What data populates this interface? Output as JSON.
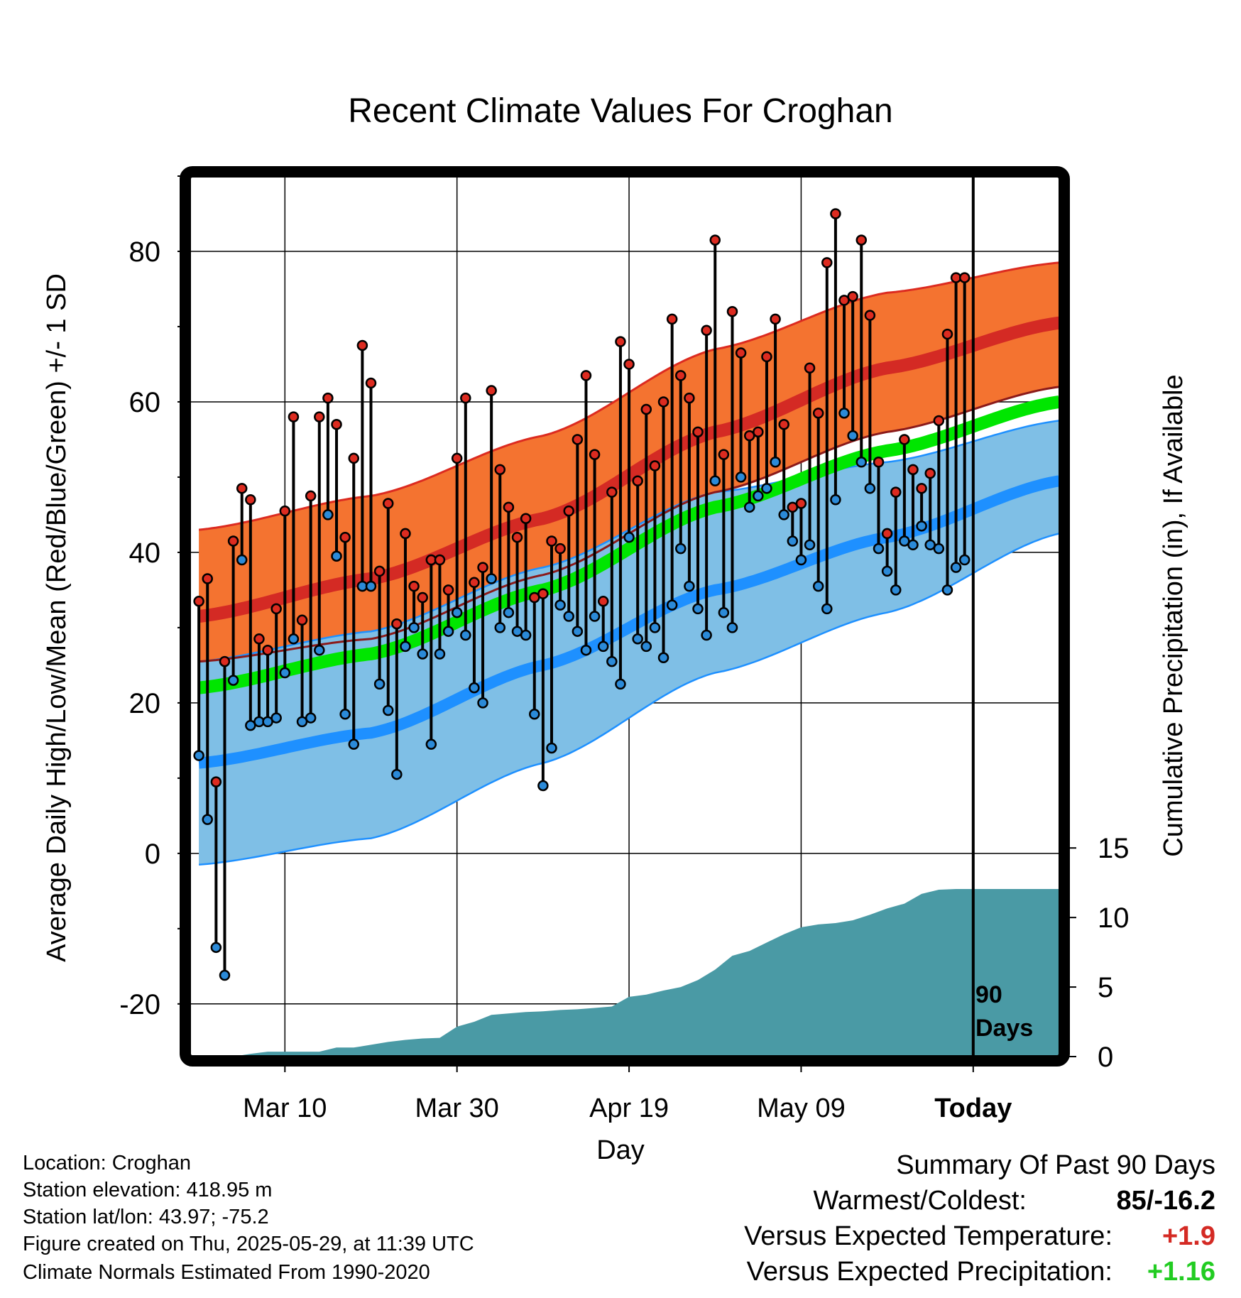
{
  "chart_data": {
    "type": "line",
    "title": "Recent Climate Values For Croghan",
    "xlabel": "Day",
    "ylabel": "Average Daily High/Low/Mean (Red/Blue/Green) +/- 1 SD",
    "y2label": "Cumulative Precipitation (in), If Available",
    "x_tick_labels": [
      "Mar 10",
      "Mar 30",
      "Apr 19",
      "May 09",
      "Today"
    ],
    "x_tick_days": [
      11,
      31,
      51,
      71,
      91
    ],
    "xlim": [
      0,
      101
    ],
    "ylim": [
      -27,
      90
    ],
    "y_ticks": [
      -20,
      0,
      20,
      40,
      60,
      80
    ],
    "y2_ticks": [
      0,
      5,
      10,
      15
    ],
    "y2_per_inch_degF": 2.47,
    "today_marker": {
      "day": 91,
      "label_line1": "90",
      "label_line2": "Days"
    },
    "normals": {
      "high_mean": [
        [
          1,
          31.5
        ],
        [
          21,
          36.5
        ],
        [
          41,
          44.5
        ],
        [
          61,
          56
        ],
        [
          81,
          64.5
        ],
        [
          101,
          70.5
        ]
      ],
      "high_sd_upper": [
        [
          1,
          43
        ],
        [
          21,
          47.5
        ],
        [
          41,
          55.5
        ],
        [
          61,
          67
        ],
        [
          81,
          74.5
        ],
        [
          101,
          78.5
        ]
      ],
      "high_sd_lower": [
        [
          1,
          25.5
        ],
        [
          21,
          28.5
        ],
        [
          41,
          37
        ],
        [
          61,
          48
        ],
        [
          81,
          56
        ],
        [
          101,
          62
        ]
      ],
      "low_mean": [
        [
          1,
          12
        ],
        [
          21,
          16
        ],
        [
          41,
          25
        ],
        [
          61,
          35
        ],
        [
          81,
          42
        ],
        [
          101,
          49.5
        ]
      ],
      "low_sd_upper": [
        [
          1,
          25.5
        ],
        [
          21,
          29.5
        ],
        [
          41,
          38
        ],
        [
          61,
          48
        ],
        [
          81,
          52
        ],
        [
          101,
          57.5
        ]
      ],
      "low_sd_lower": [
        [
          1,
          -1.5
        ],
        [
          21,
          2
        ],
        [
          41,
          12
        ],
        [
          61,
          24
        ],
        [
          81,
          32
        ],
        [
          101,
          42.5
        ]
      ],
      "mean": [
        [
          1,
          22
        ],
        [
          21,
          26.5
        ],
        [
          41,
          35
        ],
        [
          61,
          46
        ],
        [
          81,
          53.5
        ],
        [
          101,
          60
        ]
      ]
    },
    "series": [
      {
        "name": "High",
        "x": [
          1,
          2,
          3,
          4,
          5,
          6,
          7,
          8,
          9,
          10,
          11,
          12,
          13,
          14,
          15,
          16,
          17,
          18,
          19,
          20,
          21,
          22,
          23,
          24,
          25,
          26,
          27,
          28,
          29,
          30,
          31,
          32,
          33,
          34,
          35,
          36,
          37,
          38,
          39,
          40,
          41,
          42,
          43,
          44,
          45,
          46,
          47,
          48,
          49,
          50,
          51,
          52,
          53,
          54,
          55,
          56,
          57,
          58,
          59,
          60,
          61,
          62,
          63,
          64,
          65,
          66,
          67,
          68,
          69,
          70,
          71,
          72,
          73,
          74,
          75,
          76,
          77,
          78,
          79,
          80,
          81,
          82,
          83,
          84,
          85,
          86,
          87,
          88,
          89,
          90,
          91
        ],
        "values": [
          33.5,
          36.5,
          9.5,
          25.5,
          41.5,
          48.5,
          47,
          28.5,
          27,
          32.5,
          45.5,
          58,
          31,
          47.5,
          58,
          60.5,
          57,
          42,
          52.5,
          67.5,
          62.5,
          37.5,
          46.5,
          30.5,
          42.5,
          35.5,
          34,
          39,
          39,
          35,
          52.5,
          60.5,
          36,
          38,
          61.5,
          51,
          46,
          42,
          44.5,
          34,
          34.5,
          41.5,
          40.5,
          45.5,
          55,
          63.5,
          53,
          33.5,
          48,
          68,
          65,
          49.5,
          59,
          51.5,
          60,
          71,
          63.5,
          60.5,
          56,
          69.5,
          81.5,
          53,
          72,
          66.5,
          55.5,
          56,
          66,
          71,
          57,
          46,
          46.5,
          64.5,
          58.5,
          78.5,
          85,
          73.5,
          74,
          81.5,
          71.5,
          52,
          42.5,
          48,
          55,
          51,
          48.5,
          50.5,
          57.5,
          69,
          76.5,
          76.5,
          null
        ]
      },
      {
        "name": "Low",
        "x": [
          1,
          2,
          3,
          4,
          5,
          6,
          7,
          8,
          9,
          10,
          11,
          12,
          13,
          14,
          15,
          16,
          17,
          18,
          19,
          20,
          21,
          22,
          23,
          24,
          25,
          26,
          27,
          28,
          29,
          30,
          31,
          32,
          33,
          34,
          35,
          36,
          37,
          38,
          39,
          40,
          41,
          42,
          43,
          44,
          45,
          46,
          47,
          48,
          49,
          50,
          51,
          52,
          53,
          54,
          55,
          56,
          57,
          58,
          59,
          60,
          61,
          62,
          63,
          64,
          65,
          66,
          67,
          68,
          69,
          70,
          71,
          72,
          73,
          74,
          75,
          76,
          77,
          78,
          79,
          80,
          81,
          82,
          83,
          84,
          85,
          86,
          87,
          88,
          89,
          90,
          91
        ],
        "values": [
          13,
          4.5,
          -12.5,
          -16.2,
          23,
          39,
          17,
          17.5,
          17.5,
          18,
          24,
          28.5,
          17.5,
          18,
          27,
          45,
          39.5,
          18.5,
          14.5,
          35.5,
          35.5,
          22.5,
          19,
          10.5,
          27.5,
          30,
          26.5,
          14.5,
          26.5,
          29.5,
          32,
          29,
          22,
          20,
          36.5,
          30,
          32,
          29.5,
          29,
          18.5,
          9,
          14,
          33,
          31.5,
          29.5,
          27,
          31.5,
          27.5,
          25.5,
          22.5,
          42,
          28.5,
          27.5,
          30,
          26,
          33,
          40.5,
          35.5,
          32.5,
          29,
          49.5,
          32,
          30,
          50,
          46,
          47.5,
          48.5,
          52,
          45,
          41.5,
          39,
          41,
          35.5,
          32.5,
          47,
          58.5,
          55.5,
          52,
          48.5,
          40.5,
          37.5,
          35,
          41.5,
          41,
          43.5,
          41,
          40.5,
          35,
          38,
          39,
          null
        ]
      }
    ],
    "precip_cumulative": {
      "x": [
        1,
        5,
        7,
        9,
        11,
        13,
        15,
        17,
        19,
        21,
        23,
        25,
        27,
        29,
        31,
        33,
        35,
        37,
        39,
        41,
        43,
        45,
        47,
        49,
        51,
        53,
        55,
        57,
        59,
        61,
        63,
        65,
        67,
        69,
        71,
        73,
        75,
        77,
        79,
        81,
        83,
        85,
        87,
        89,
        91,
        101
      ],
      "values": [
        0,
        0,
        0.2,
        0.35,
        0.35,
        0.35,
        0.35,
        0.65,
        0.65,
        0.85,
        1.05,
        1.2,
        1.3,
        1.35,
        2.15,
        2.5,
        3.0,
        3.1,
        3.2,
        3.25,
        3.35,
        3.4,
        3.5,
        3.6,
        4.3,
        4.45,
        4.75,
        5.0,
        5.5,
        6.25,
        7.25,
        7.6,
        8.2,
        8.8,
        9.3,
        9.5,
        9.6,
        9.8,
        10.2,
        10.65,
        11.0,
        11.7,
        12.0,
        12.05,
        12.05,
        12.05
      ]
    }
  },
  "footer": {
    "location": "Location: Croghan",
    "elevation": "Station elevation: 418.95 m",
    "latlon": "Station lat/lon: 43.97; -75.2",
    "created": "Figure created on Thu, 2025-05-29, at 11:39 UTC",
    "normals_period": "Climate Normals Estimated From 1990-2020"
  },
  "summary": {
    "title": "Summary Of Past 90 Days",
    "warm_cold_label": "Warmest/Coldest:",
    "warm_cold_value": "85/-16.2",
    "temp_label": "Versus Expected Temperature:",
    "temp_value": "+1.9",
    "precip_label": "Versus Expected Precipitation:",
    "precip_value": "+1.16"
  },
  "colors": {
    "high_band": "#f47330",
    "high_band_edge": "#dc2b20",
    "high_mean_line": "#d42a24",
    "low_band": "#7fbfe6",
    "low_mean_line": "#1e90ff",
    "mean_line": "#00e600",
    "precip_fill": "#4a9aa5",
    "high_point": "#dc2b20",
    "low_point": "#2b8ad8",
    "positive_temp": "#d42a24",
    "positive_precip": "#22cc22"
  }
}
